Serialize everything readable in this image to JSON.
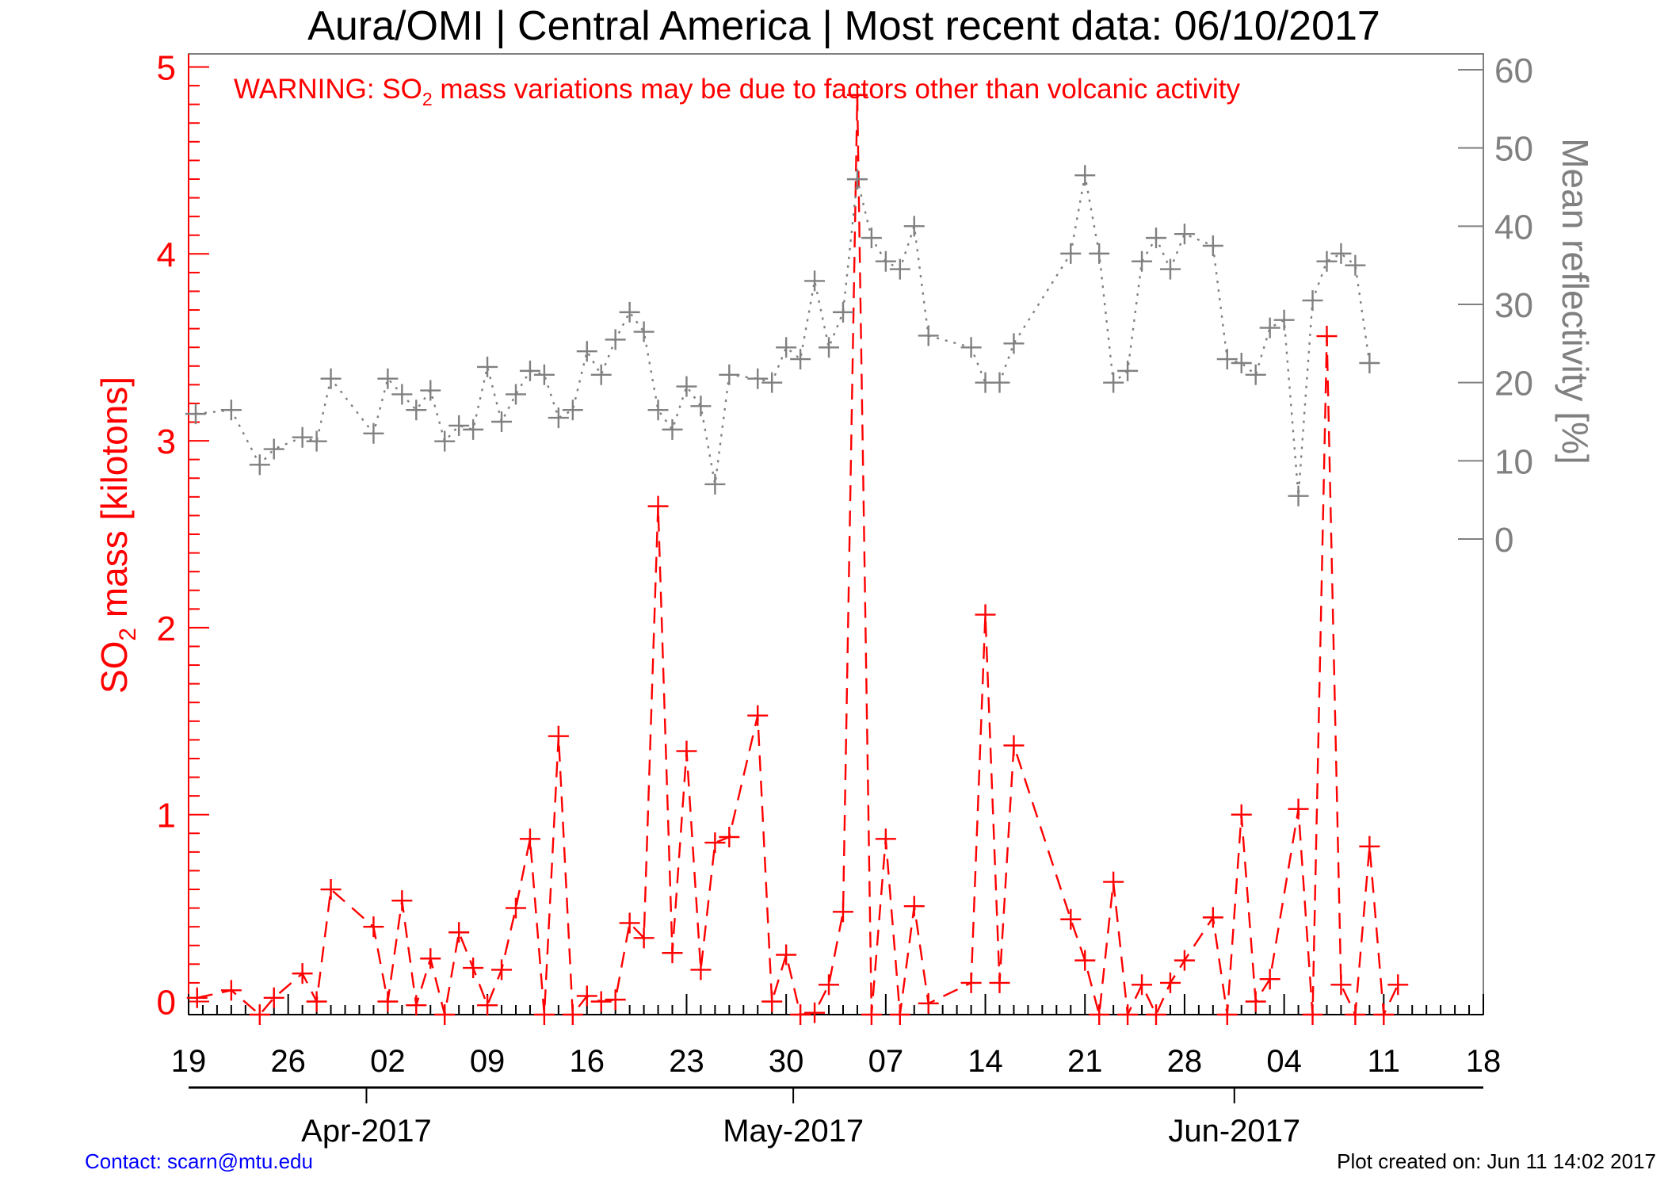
{
  "chart_data": {
    "type": "line",
    "title": "Aura/OMI | Central America | Most recent data: 06/10/2017",
    "warning": {
      "prefix": "WARNING: SO",
      "subscript": "2",
      "suffix": " mass variations may be due to factors other than volcanic activity"
    },
    "ylabel_left": {
      "prefix": "SO",
      "subscript": "2",
      "suffix": " mass [kilotons]"
    },
    "ylabel_right": "Mean reflectivity [%]",
    "xlim": [
      0,
      91
    ],
    "ylim_left": [
      -0.07,
      5.07
    ],
    "ylim_right": [
      0,
      60
    ],
    "x_ticks": [
      {
        "x": 0,
        "label": "19"
      },
      {
        "x": 7,
        "label": "26"
      },
      {
        "x": 14,
        "label": "02"
      },
      {
        "x": 21,
        "label": "09"
      },
      {
        "x": 28,
        "label": "16"
      },
      {
        "x": 35,
        "label": "23"
      },
      {
        "x": 42,
        "label": "30"
      },
      {
        "x": 49,
        "label": "07"
      },
      {
        "x": 56,
        "label": "14"
      },
      {
        "x": 63,
        "label": "21"
      },
      {
        "x": 70,
        "label": "28"
      },
      {
        "x": 77,
        "label": "04"
      },
      {
        "x": 84,
        "label": "11"
      },
      {
        "x": 91,
        "label": "18"
      }
    ],
    "month_ticks": [
      {
        "x": 12.5,
        "label": "Apr-2017"
      },
      {
        "x": 42.5,
        "label": "May-2017"
      },
      {
        "x": 73.5,
        "label": "Jun-2017"
      }
    ],
    "y_ticks_left": [
      0,
      1,
      2,
      3,
      4,
      5
    ],
    "y_ticks_right": [
      0,
      10,
      20,
      30,
      40,
      50,
      60
    ],
    "series": [
      {
        "axis": "left",
        "color": "#ff0000",
        "style": "dashed",
        "points": [
          [
            0.6,
            0.02
          ],
          [
            3.0,
            0.06
          ],
          [
            5.0,
            -0.07
          ],
          [
            6.0,
            0.02
          ],
          [
            8.0,
            0.15
          ],
          [
            9.0,
            0.0
          ],
          [
            10.0,
            0.6
          ],
          [
            13.0,
            0.4
          ],
          [
            14.0,
            0.0
          ],
          [
            15.0,
            0.54
          ],
          [
            16.0,
            -0.02
          ],
          [
            17.0,
            0.23
          ],
          [
            18.0,
            -0.07
          ],
          [
            19.0,
            0.37
          ],
          [
            20.0,
            0.18
          ],
          [
            21.0,
            -0.02
          ],
          [
            22.0,
            0.17
          ],
          [
            23.0,
            0.5
          ],
          [
            24.0,
            0.87
          ],
          [
            25.0,
            -0.07
          ],
          [
            26.0,
            1.42
          ],
          [
            27.0,
            -0.07
          ],
          [
            28.0,
            0.03
          ],
          [
            29.0,
            0.0
          ],
          [
            30.0,
            0.01
          ],
          [
            31.0,
            0.42
          ],
          [
            32.0,
            0.34
          ],
          [
            33.0,
            2.65
          ],
          [
            34.0,
            0.26
          ],
          [
            35.0,
            1.34
          ],
          [
            36.0,
            0.17
          ],
          [
            37.0,
            0.85
          ],
          [
            38.0,
            0.88
          ],
          [
            40.0,
            1.53
          ],
          [
            41.0,
            0.0
          ],
          [
            42.0,
            0.25
          ],
          [
            43.0,
            -0.07
          ],
          [
            44.0,
            -0.06
          ],
          [
            45.0,
            0.09
          ],
          [
            46.0,
            0.48
          ],
          [
            47.0,
            4.85
          ],
          [
            48.0,
            -0.07
          ],
          [
            49.0,
            0.87
          ],
          [
            50.0,
            -0.07
          ],
          [
            51.0,
            0.51
          ],
          [
            52.0,
            -0.01
          ],
          [
            55.0,
            0.1
          ],
          [
            56.0,
            2.07
          ],
          [
            57.0,
            0.1
          ],
          [
            58.0,
            1.37
          ],
          [
            62.0,
            0.44
          ],
          [
            63.0,
            0.22
          ],
          [
            64.0,
            -0.07
          ],
          [
            65.0,
            0.64
          ],
          [
            66.0,
            -0.07
          ],
          [
            67.0,
            0.09
          ],
          [
            68.0,
            -0.07
          ],
          [
            69.0,
            0.1
          ],
          [
            70.0,
            0.22
          ],
          [
            72.0,
            0.45
          ],
          [
            73.0,
            -0.07
          ],
          [
            74.0,
            1.0
          ],
          [
            75.0,
            0.0
          ],
          [
            76.0,
            0.12
          ],
          [
            78.0,
            1.03
          ],
          [
            79.0,
            -0.07
          ],
          [
            80.0,
            3.56
          ],
          [
            81.0,
            0.09
          ],
          [
            82.0,
            -0.07
          ],
          [
            83.0,
            0.83
          ],
          [
            84.0,
            -0.07
          ],
          [
            85.0,
            0.09
          ]
        ]
      },
      {
        "axis": "right",
        "color": "#808080",
        "style": "dotted",
        "points": [
          [
            0.5,
            16.0
          ],
          [
            3.0,
            16.5
          ],
          [
            5.0,
            9.5
          ],
          [
            6.0,
            11.5
          ],
          [
            8.0,
            13.0
          ],
          [
            9.0,
            12.5
          ],
          [
            10.0,
            20.5
          ],
          [
            13.0,
            13.5
          ],
          [
            14.0,
            20.5
          ],
          [
            15.0,
            18.5
          ],
          [
            16.0,
            16.5
          ],
          [
            17.0,
            19.0
          ],
          [
            18.0,
            12.5
          ],
          [
            19.0,
            14.5
          ],
          [
            20.0,
            14.0
          ],
          [
            21.0,
            22.0
          ],
          [
            22.0,
            15.0
          ],
          [
            23.0,
            18.5
          ],
          [
            24.0,
            21.5
          ],
          [
            25.0,
            21.0
          ],
          [
            26.0,
            15.5
          ],
          [
            27.0,
            16.5
          ],
          [
            28.0,
            24.0
          ],
          [
            29.0,
            21.0
          ],
          [
            30.0,
            25.5
          ],
          [
            31.0,
            29.0
          ],
          [
            32.0,
            26.5
          ],
          [
            33.0,
            16.5
          ],
          [
            34.0,
            14.0
          ],
          [
            35.0,
            19.5
          ],
          [
            36.0,
            17.0
          ],
          [
            37.0,
            7.0
          ],
          [
            38.0,
            21.0
          ],
          [
            40.0,
            20.5
          ],
          [
            41.0,
            20.0
          ],
          [
            42.0,
            24.5
          ],
          [
            43.0,
            23.0
          ],
          [
            44.0,
            33.0
          ],
          [
            45.0,
            24.5
          ],
          [
            46.0,
            29.0
          ],
          [
            47.0,
            46.0
          ],
          [
            48.0,
            38.5
          ],
          [
            49.0,
            35.5
          ],
          [
            50.0,
            34.5
          ],
          [
            51.0,
            40.0
          ],
          [
            52.0,
            26.0
          ],
          [
            55.0,
            24.5
          ],
          [
            56.0,
            20.0
          ],
          [
            57.0,
            20.0
          ],
          [
            58.0,
            25.0
          ],
          [
            62.0,
            36.5
          ],
          [
            63.0,
            46.5
          ],
          [
            64.0,
            36.5
          ],
          [
            65.0,
            20.0
          ],
          [
            66.0,
            21.5
          ],
          [
            67.0,
            35.5
          ],
          [
            68.0,
            38.5
          ],
          [
            69.0,
            34.5
          ],
          [
            70.0,
            39.0
          ],
          [
            72.0,
            37.5
          ],
          [
            73.0,
            23.0
          ],
          [
            74.0,
            22.5
          ],
          [
            75.0,
            21.0
          ],
          [
            76.0,
            27.0
          ],
          [
            77.0,
            28.0
          ],
          [
            78.0,
            5.5
          ],
          [
            79.0,
            30.5
          ],
          [
            80.0,
            35.5
          ],
          [
            81.0,
            36.5
          ],
          [
            82.0,
            35.0
          ],
          [
            83.0,
            22.5
          ]
        ]
      }
    ],
    "footer_left": "Contact: scarn@mtu.edu",
    "footer_right": "Plot created on: Jun 11 14:02 2017",
    "footer_left_color": "#0000ff"
  }
}
